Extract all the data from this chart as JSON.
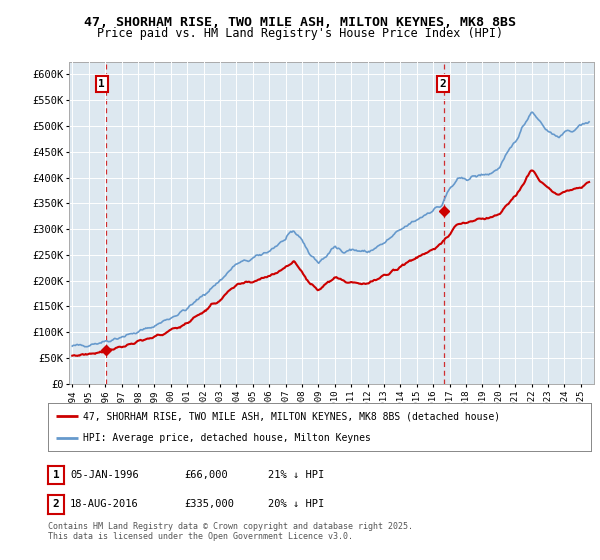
{
  "title_line1": "47, SHORHAM RISE, TWO MILE ASH, MILTON KEYNES, MK8 8BS",
  "title_line2": "Price paid vs. HM Land Registry's House Price Index (HPI)",
  "legend_line1": "47, SHORHAM RISE, TWO MILE ASH, MILTON KEYNES, MK8 8BS (detached house)",
  "legend_line2": "HPI: Average price, detached house, Milton Keynes",
  "footnote": "Contains HM Land Registry data © Crown copyright and database right 2025.\nThis data is licensed under the Open Government Licence v3.0.",
  "annotation1_date": "05-JAN-1996",
  "annotation1_price": "£66,000",
  "annotation1_hpi": "21% ↓ HPI",
  "annotation2_date": "18-AUG-2016",
  "annotation2_price": "£335,000",
  "annotation2_hpi": "20% ↓ HPI",
  "red_color": "#cc0000",
  "blue_color": "#6699cc",
  "plot_bg": "#dde8f0",
  "ylim": [
    0,
    625000
  ],
  "yticks": [
    0,
    50000,
    100000,
    150000,
    200000,
    250000,
    300000,
    350000,
    400000,
    450000,
    500000,
    550000,
    600000
  ],
  "ytick_labels": [
    "£0",
    "£50K",
    "£100K",
    "£150K",
    "£200K",
    "£250K",
    "£300K",
    "£350K",
    "£400K",
    "£450K",
    "£500K",
    "£550K",
    "£600K"
  ],
  "sale1_x": 1996.03,
  "sale1_y": 66000,
  "sale2_x": 2016.63,
  "sale2_y": 335000,
  "ann1_x": 1995.8,
  "ann2_x": 2016.6,
  "xmin": 1993.8,
  "xmax": 2025.8,
  "hpi_base": [
    1994.0,
    1995.0,
    1996.0,
    1997.0,
    1998.0,
    1999.0,
    2000.0,
    2001.0,
    2002.0,
    2003.0,
    2004.0,
    2005.0,
    2006.0,
    2007.0,
    2007.5,
    2008.0,
    2008.5,
    2009.0,
    2009.5,
    2010.0,
    2010.5,
    2011.0,
    2012.0,
    2013.0,
    2014.0,
    2015.0,
    2016.0,
    2016.5,
    2017.0,
    2017.5,
    2018.0,
    2019.0,
    2019.5,
    2020.0,
    2021.0,
    2021.5,
    2022.0,
    2022.5,
    2023.0,
    2023.5,
    2024.0,
    2025.0,
    2025.5
  ],
  "hpi_vals": [
    72000,
    76000,
    82000,
    91000,
    100000,
    112000,
    128000,
    145000,
    172000,
    200000,
    232000,
    242000,
    258000,
    280000,
    295000,
    280000,
    250000,
    235000,
    248000,
    265000,
    258000,
    260000,
    255000,
    272000,
    298000,
    318000,
    338000,
    345000,
    378000,
    395000,
    398000,
    405000,
    408000,
    418000,
    470000,
    500000,
    530000,
    510000,
    490000,
    480000,
    485000,
    500000,
    510000
  ],
  "red_base": [
    1994.0,
    1995.0,
    1996.0,
    1997.0,
    1998.0,
    1999.0,
    2000.0,
    2001.0,
    2002.0,
    2003.0,
    2004.0,
    2005.0,
    2006.0,
    2007.0,
    2007.5,
    2008.0,
    2008.5,
    2009.0,
    2009.5,
    2010.0,
    2010.5,
    2011.0,
    2012.0,
    2013.0,
    2014.0,
    2015.0,
    2016.0,
    2016.5,
    2017.0,
    2017.5,
    2018.0,
    2019.0,
    2019.5,
    2020.0,
    2021.0,
    2021.5,
    2022.0,
    2022.5,
    2023.0,
    2023.5,
    2024.0,
    2025.0,
    2025.5
  ],
  "red_vals": [
    54000,
    58000,
    64000,
    72000,
    80000,
    90000,
    103000,
    118000,
    140000,
    163000,
    190000,
    198000,
    210000,
    225000,
    238000,
    218000,
    192000,
    183000,
    196000,
    208000,
    198000,
    198000,
    194000,
    208000,
    228000,
    245000,
    262000,
    270000,
    290000,
    310000,
    312000,
    320000,
    322000,
    330000,
    362000,
    388000,
    415000,
    398000,
    378000,
    368000,
    372000,
    380000,
    390000
  ]
}
